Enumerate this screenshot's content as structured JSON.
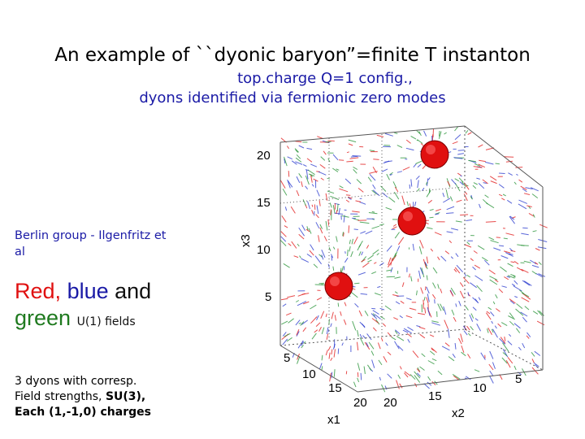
{
  "slide": {
    "title": "An example of ``dyonic baryon”=finite T instanton",
    "subtitle_line1": "top.charge  Q=1 config.,",
    "subtitle_line2": "dyons identified via fermionic zero modes",
    "group_credit": "Berlin group - Ilgenfritz et al",
    "fields": {
      "red": "Red,",
      "blue": "blue",
      "and": "and",
      "green": "green",
      "u1": "U(1) fields"
    },
    "dyons_text": {
      "line1": "3 dyons with corresp.",
      "line2_prefix": "Field strengths, ",
      "line2_bold": "SU(3),",
      "line3": "Each (1,-1,0) charges"
    }
  },
  "plot": {
    "x3_ticks": [
      "20",
      "15",
      "10",
      "5"
    ],
    "x3_label": "x3",
    "x1_ticks": [
      "5",
      "10",
      "15",
      "20"
    ],
    "x1_label": "x1",
    "x2_ticks": [
      "20",
      "15",
      "10",
      "5"
    ],
    "x2_label": "x2",
    "colors": {
      "red": "#e01010",
      "blue": "#2233cc",
      "green": "#1f8f2f"
    }
  }
}
